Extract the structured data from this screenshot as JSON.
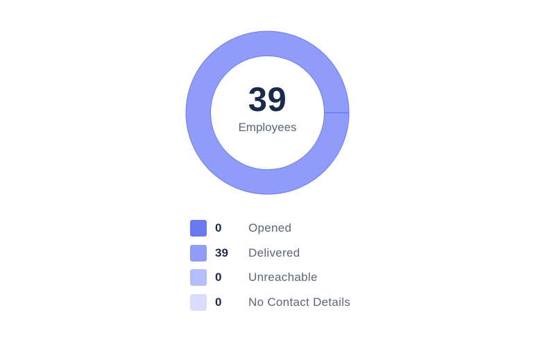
{
  "chart_data": {
    "type": "pie",
    "variant": "donut",
    "total": 39,
    "center_label": "Employees",
    "categories": [
      "Opened",
      "Delivered",
      "Unreachable",
      "No Contact Details"
    ],
    "values": [
      0,
      39,
      0,
      0
    ],
    "colors": [
      "#6b79f1",
      "#8f9cfa",
      "#b6bdfb",
      "#d9dcfd"
    ],
    "segment_stroke": "#6b79f1",
    "legend_position": "bottom"
  },
  "legend": [
    {
      "value": "0",
      "label": "Opened",
      "color": "#6b79f1"
    },
    {
      "value": "39",
      "label": "Delivered",
      "color": "#8f9cfa"
    },
    {
      "value": "0",
      "label": "Unreachable",
      "color": "#b6bdfb"
    },
    {
      "value": "0",
      "label": "No Contact Details",
      "color": "#d9dcfd"
    }
  ]
}
